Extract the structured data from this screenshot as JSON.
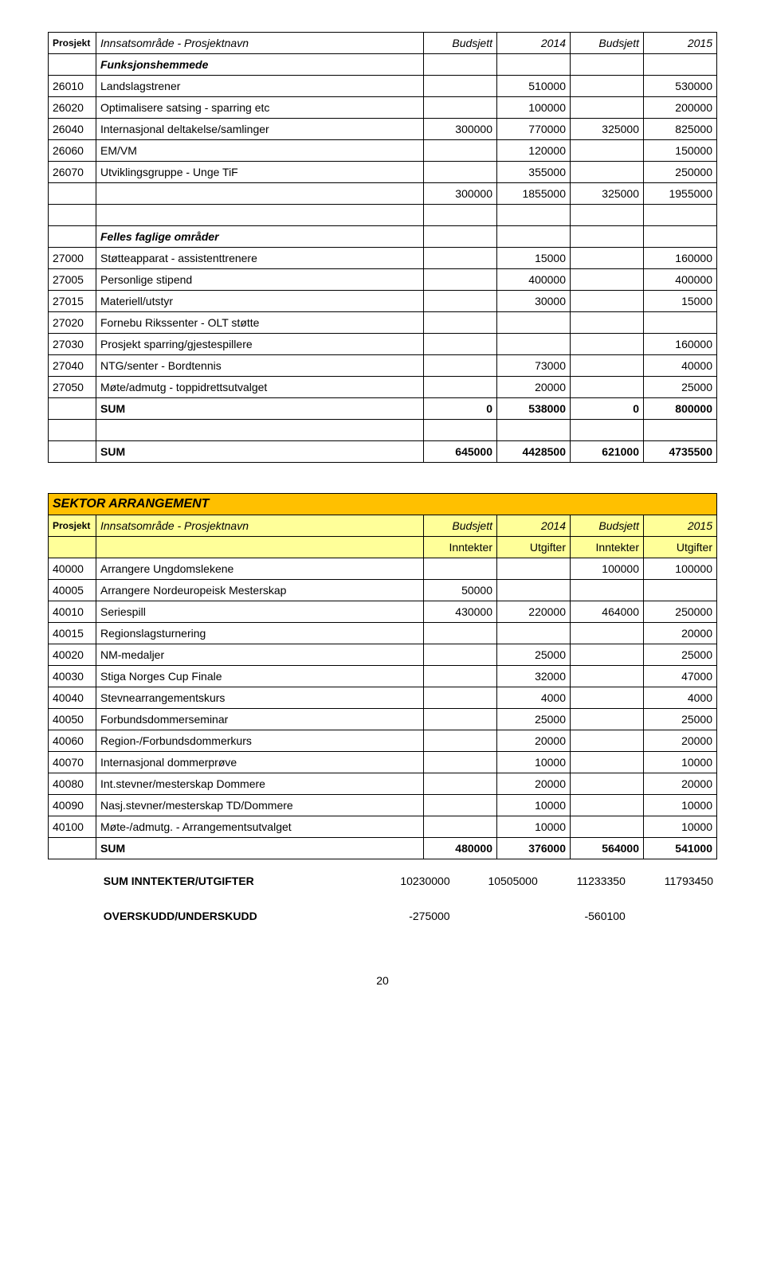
{
  "table1": {
    "header": {
      "c0": "Prosjekt",
      "c1": "Innsatsområde - Prosjektnavn",
      "c2": "Budsjett",
      "c3": "2014",
      "c4": "Budsjett",
      "c5": "2015"
    },
    "section1_title": "Funksjonshemmede",
    "rows1": [
      {
        "id": "26010",
        "name": "Landslagstrener",
        "v1": "",
        "v2": "510000",
        "v3": "",
        "v4": "530000"
      },
      {
        "id": "26020",
        "name": "Optimalisere satsing - sparring etc",
        "v1": "",
        "v2": "100000",
        "v3": "",
        "v4": "200000"
      },
      {
        "id": "26040",
        "name": "Internasjonal deltakelse/samlinger",
        "v1": "300000",
        "v2": "770000",
        "v3": "325000",
        "v4": "825000"
      },
      {
        "id": "26060",
        "name": "EM/VM",
        "v1": "",
        "v2": "120000",
        "v3": "",
        "v4": "150000"
      },
      {
        "id": "26070",
        "name": "Utviklingsgruppe - Unge TiF",
        "v1": "",
        "v2": "355000",
        "v3": "",
        "v4": "250000"
      }
    ],
    "subtotal1": {
      "v1": "300000",
      "v2": "1855000",
      "v3": "325000",
      "v4": "1955000"
    },
    "section2_title": "Felles faglige områder",
    "rows2": [
      {
        "id": "27000",
        "name": "Støtteapparat - assistenttrenere",
        "v1": "",
        "v2": "15000",
        "v3": "",
        "v4": "160000"
      },
      {
        "id": "27005",
        "name": "Personlige stipend",
        "v1": "",
        "v2": "400000",
        "v3": "",
        "v4": "400000"
      },
      {
        "id": "27015",
        "name": "Materiell/utstyr",
        "v1": "",
        "v2": "30000",
        "v3": "",
        "v4": "15000"
      },
      {
        "id": "27020",
        "name": "Fornebu Rikssenter - OLT støtte",
        "v1": "",
        "v2": "",
        "v3": "",
        "v4": ""
      },
      {
        "id": "27030",
        "name": "Prosjekt sparring/gjestespillere",
        "v1": "",
        "v2": "",
        "v3": "",
        "v4": "160000"
      },
      {
        "id": "27040",
        "name": "NTG/senter - Bordtennis",
        "v1": "",
        "v2": "73000",
        "v3": "",
        "v4": "40000"
      },
      {
        "id": "27050",
        "name": "Møte/admutg - toppidrettsutvalget",
        "v1": "",
        "v2": "20000",
        "v3": "",
        "v4": "25000"
      }
    ],
    "sum2": {
      "label": "SUM",
      "v1": "0",
      "v2": "538000",
      "v3": "0",
      "v4": "800000"
    },
    "sum_total": {
      "label": "SUM",
      "v1": "645000",
      "v2": "4428500",
      "v3": "621000",
      "v4": "4735500"
    }
  },
  "table2": {
    "sektor": "SEKTOR ARRANGEMENT",
    "header": {
      "c0": "Prosjekt",
      "c1": "Innsatsområde - Prosjektnavn",
      "c2": "Budsjett",
      "c3": "2014",
      "c4": "Budsjett",
      "c5": "2015"
    },
    "subheader": {
      "c2": "Inntekter",
      "c3": "Utgifter",
      "c4": "Inntekter",
      "c5": "Utgifter"
    },
    "rows": [
      {
        "id": "40000",
        "name": "Arrangere Ungdomslekene",
        "v1": "",
        "v2": "",
        "v3": "100000",
        "v4": "100000"
      },
      {
        "id": "40005",
        "name": "Arrangere Nordeuropeisk Mesterskap",
        "v1": "50000",
        "v2": "",
        "v3": "",
        "v4": ""
      },
      {
        "id": "40010",
        "name": "Seriespill",
        "v1": "430000",
        "v2": "220000",
        "v3": "464000",
        "v4": "250000"
      },
      {
        "id": "40015",
        "name": "Regionslagsturnering",
        "v1": "",
        "v2": "",
        "v3": "",
        "v4": "20000"
      },
      {
        "id": "40020",
        "name": "NM-medaljer",
        "v1": "",
        "v2": "25000",
        "v3": "",
        "v4": "25000"
      },
      {
        "id": "40030",
        "name": "Stiga Norges Cup Finale",
        "v1": "",
        "v2": "32000",
        "v3": "",
        "v4": "47000"
      },
      {
        "id": "40040",
        "name": "Stevnearrangementskurs",
        "v1": "",
        "v2": "4000",
        "v3": "",
        "v4": "4000"
      },
      {
        "id": "40050",
        "name": "Forbundsdommerseminar",
        "v1": "",
        "v2": "25000",
        "v3": "",
        "v4": "25000"
      },
      {
        "id": "40060",
        "name": "Region-/Forbundsdommerkurs",
        "v1": "",
        "v2": "20000",
        "v3": "",
        "v4": "20000"
      },
      {
        "id": "40070",
        "name": "Internasjonal dommerprøve",
        "v1": "",
        "v2": "10000",
        "v3": "",
        "v4": "10000"
      },
      {
        "id": "40080",
        "name": "Int.stevner/mesterskap Dommere",
        "v1": "",
        "v2": "20000",
        "v3": "",
        "v4": "20000"
      },
      {
        "id": "40090",
        "name": "Nasj.stevner/mesterskap TD/Dommere",
        "v1": "",
        "v2": "10000",
        "v3": "",
        "v4": "10000"
      },
      {
        "id": "40100",
        "name": "Møte-/admutg. - Arrangementsutvalget",
        "v1": "",
        "v2": "10000",
        "v3": "",
        "v4": "10000"
      }
    ],
    "sum": {
      "label": "SUM",
      "v1": "480000",
      "v2": "376000",
      "v3": "564000",
      "v4": "541000"
    }
  },
  "summary": {
    "row1": {
      "label": "SUM INNTEKTER/UTGIFTER",
      "v1": "10230000",
      "v2": "10505000",
      "v3": "11233350",
      "v4": "11793450"
    },
    "row2": {
      "label": "OVERSKUDD/UNDERSKUDD",
      "v1": "-275000",
      "v3": "-560100"
    }
  },
  "page_number": "20"
}
